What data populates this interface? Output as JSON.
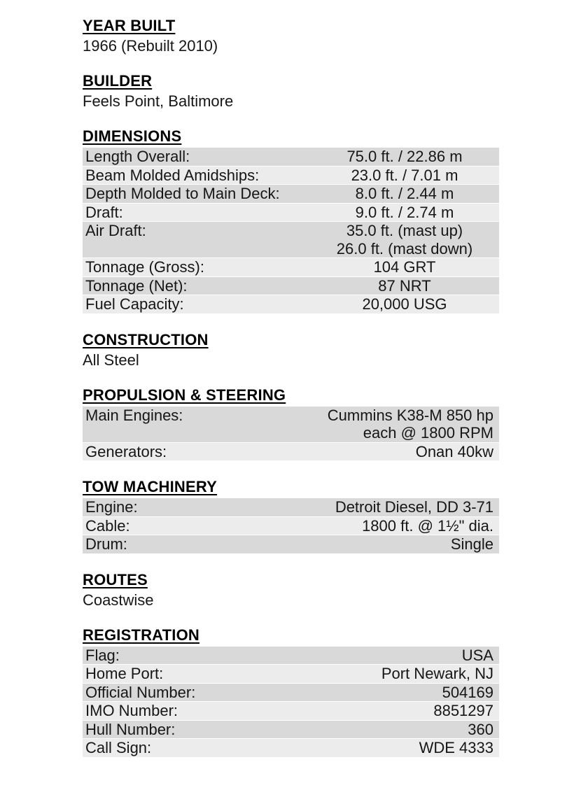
{
  "colors": {
    "row_dark": "#d9d9d9",
    "row_light": "#ececec",
    "text": "#161616"
  },
  "sections": [
    {
      "heading": "YEAR BUILT",
      "text": "1966 (Rebuilt 2010)"
    },
    {
      "heading": "BUILDER",
      "text": "Feels Point, Baltimore"
    },
    {
      "heading": "DIMENSIONS",
      "rows": [
        {
          "label": "Length Overall:",
          "value": "75.0 ft. / 22.86 m"
        },
        {
          "label": "Beam Molded Amidships:",
          "value": "23.0 ft. / 7.01 m"
        },
        {
          "label": "Depth Molded to Main Deck:",
          "value": "8.0 ft. / 2.44 m"
        },
        {
          "label": "Draft:",
          "value": "9.0 ft. / 2.74 m"
        },
        {
          "label": "Air Draft:",
          "value": "35.0 ft. (mast up)\n26.0 ft. (mast down)"
        },
        {
          "label": "Tonnage (Gross):",
          "value": "104 GRT"
        },
        {
          "label": "Tonnage (Net):",
          "value": "87 NRT"
        },
        {
          "label": "Fuel Capacity:",
          "value": "20,000 USG"
        }
      ]
    },
    {
      "heading": "CONSTRUCTION",
      "text": "All Steel"
    },
    {
      "heading": "PROPULSION & STEERING",
      "rows": [
        {
          "label": "Main Engines:",
          "value": "Cummins K38-M 850 hp\neach @ 1800 RPM"
        },
        {
          "label": "Generators:",
          "value": "Onan 40kw"
        }
      ]
    },
    {
      "heading": "TOW MACHINERY",
      "rows": [
        {
          "label": "Engine:",
          "value": "Detroit Diesel, DD 3-71"
        },
        {
          "label": "Cable:",
          "value": "1800 ft. @ 1½\" dia."
        },
        {
          "label": "Drum:",
          "value": "Single"
        }
      ]
    },
    {
      "heading": "ROUTES",
      "text": "Coastwise"
    },
    {
      "heading": "REGISTRATION",
      "rows": [
        {
          "label": "Flag:",
          "value": "USA"
        },
        {
          "label": "Home Port:",
          "value": "Port Newark, NJ"
        },
        {
          "label": "Official Number:",
          "value": "504169"
        },
        {
          "label": "IMO Number:",
          "value": "8851297"
        },
        {
          "label": "Hull Number:",
          "value": "360"
        },
        {
          "label": "Call Sign:",
          "value": "WDE 4333"
        }
      ]
    }
  ]
}
